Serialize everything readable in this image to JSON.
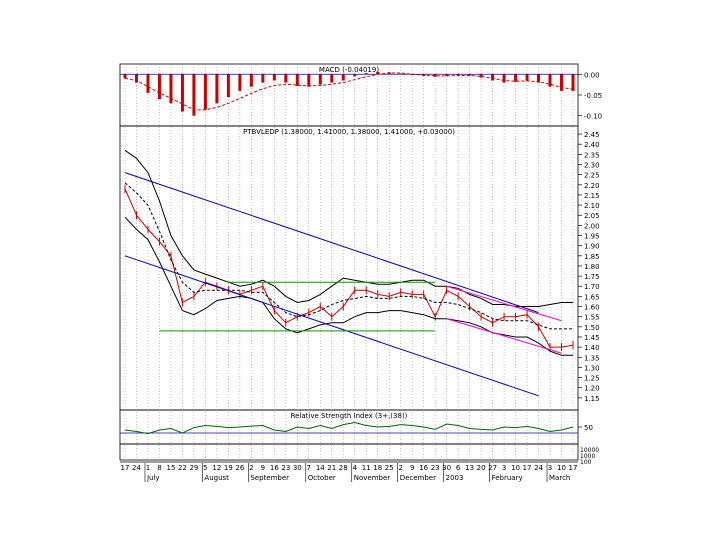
{
  "chart_data": {
    "type": "line",
    "x": [
      "17",
      "24",
      "1",
      "8",
      "15",
      "22",
      "29",
      "5",
      "12",
      "19",
      "26",
      "2",
      "9",
      "16",
      "23",
      "30",
      "7",
      "14",
      "21",
      "28",
      "4",
      "11",
      "18",
      "25",
      "2",
      "9",
      "16",
      "23",
      "30",
      "6",
      "13",
      "20",
      "27",
      "3",
      "10",
      "17",
      "24",
      "3",
      "10",
      "17"
    ],
    "months": [
      "July",
      "August",
      "September",
      "October",
      "November",
      "December",
      "2003",
      "February",
      "March"
    ],
    "panels": [
      {
        "name": "macd",
        "title": "MACD (-0.04019)",
        "ylim": [
          -0.12,
          0.02
        ],
        "ticks": [
          "0.00",
          "-0.05",
          "-0.10"
        ],
        "tick_values": [
          0.0,
          -0.05,
          -0.1
        ],
        "series": [
          {
            "name": "MACD",
            "type": "bar",
            "color": "#cc0000",
            "values": [
              -0.01,
              -0.02,
              -0.045,
              -0.06,
              -0.07,
              -0.09,
              -0.1,
              -0.085,
              -0.07,
              -0.055,
              -0.04,
              -0.03,
              -0.02,
              -0.015,
              -0.02,
              -0.028,
              -0.03,
              -0.025,
              -0.02,
              -0.015,
              -0.005,
              0.003,
              0.006,
              0.005,
              0.002,
              -0.002,
              -0.004,
              -0.006,
              -0.004,
              -0.002,
              -0.003,
              -0.008,
              -0.015,
              -0.02,
              -0.018,
              -0.015,
              -0.02,
              -0.03,
              -0.04,
              -0.04
            ]
          },
          {
            "name": "Signal",
            "type": "line",
            "dash": true,
            "color": "#cc0000",
            "values": [
              -0.01,
              -0.015,
              -0.03,
              -0.045,
              -0.058,
              -0.072,
              -0.086,
              -0.086,
              -0.08,
              -0.07,
              -0.058,
              -0.046,
              -0.035,
              -0.027,
              -0.024,
              -0.026,
              -0.028,
              -0.027,
              -0.024,
              -0.02,
              -0.013,
              -0.006,
              0.0,
              0.003,
              0.003,
              0.0,
              -0.002,
              -0.004,
              -0.004,
              -0.003,
              -0.003,
              -0.005,
              -0.01,
              -0.015,
              -0.017,
              -0.016,
              -0.018,
              -0.024,
              -0.032,
              -0.036
            ]
          }
        ]
      },
      {
        "name": "price",
        "title": "PTBVLEDP (1.38000, 1.41000, 1.38000, 1.41000, +0.03000)",
        "ylim": [
          1.1,
          2.47
        ],
        "ticks": [
          "2.45",
          "2.40",
          "2.35",
          "2.30",
          "2.25",
          "2.20",
          "2.15",
          "2.10",
          "2.05",
          "2.00",
          "1.95",
          "1.90",
          "1.85",
          "1.80",
          "1.75",
          "1.70",
          "1.65",
          "1.60",
          "1.55",
          "1.50",
          "1.45",
          "1.40",
          "1.35",
          "1.30",
          "1.25",
          "1.20",
          "1.15"
        ],
        "tick_values": [
          2.45,
          2.4,
          2.35,
          2.3,
          2.25,
          2.2,
          2.15,
          2.1,
          2.05,
          2.0,
          1.95,
          1.9,
          1.85,
          1.8,
          1.75,
          1.7,
          1.65,
          1.6,
          1.55,
          1.5,
          1.45,
          1.4,
          1.35,
          1.3,
          1.25,
          1.2,
          1.15
        ],
        "series": [
          {
            "name": "Close",
            "type": "line",
            "color": "#cc0000",
            "values": [
              2.18,
              2.05,
              1.98,
              1.92,
              1.85,
              1.62,
              1.65,
              1.72,
              1.7,
              1.68,
              1.66,
              1.68,
              1.7,
              1.58,
              1.52,
              1.55,
              1.57,
              1.6,
              1.55,
              1.6,
              1.68,
              1.68,
              1.66,
              1.65,
              1.67,
              1.66,
              1.66,
              1.55,
              1.68,
              1.65,
              1.6,
              1.55,
              1.52,
              1.55,
              1.55,
              1.56,
              1.5,
              1.4,
              1.4,
              1.41
            ]
          },
          {
            "name": "Bollinger upper",
            "type": "line",
            "color": "#000000",
            "values": [
              2.37,
              2.33,
              2.26,
              2.12,
              1.95,
              1.85,
              1.78,
              1.76,
              1.74,
              1.72,
              1.7,
              1.71,
              1.73,
              1.7,
              1.65,
              1.62,
              1.63,
              1.66,
              1.7,
              1.74,
              1.73,
              1.72,
              1.71,
              1.71,
              1.72,
              1.73,
              1.73,
              1.7,
              1.7,
              1.69,
              1.66,
              1.64,
              1.61,
              1.61,
              1.6,
              1.6,
              1.6,
              1.61,
              1.62,
              1.62
            ]
          },
          {
            "name": "Bollinger lower",
            "type": "line",
            "color": "#000000",
            "values": [
              2.04,
              1.98,
              1.93,
              1.82,
              1.7,
              1.58,
              1.56,
              1.59,
              1.63,
              1.64,
              1.65,
              1.64,
              1.62,
              1.54,
              1.49,
              1.47,
              1.49,
              1.51,
              1.52,
              1.52,
              1.55,
              1.57,
              1.57,
              1.58,
              1.58,
              1.57,
              1.56,
              1.54,
              1.54,
              1.53,
              1.52,
              1.5,
              1.47,
              1.46,
              1.45,
              1.45,
              1.42,
              1.38,
              1.36,
              1.36
            ]
          },
          {
            "name": "Moving average",
            "type": "line",
            "dash": true,
            "color": "#000000",
            "values": [
              2.21,
              2.16,
              2.1,
              1.97,
              1.83,
              1.72,
              1.67,
              1.68,
              1.68,
              1.68,
              1.68,
              1.67,
              1.67,
              1.62,
              1.57,
              1.55,
              1.56,
              1.58,
              1.61,
              1.63,
              1.64,
              1.65,
              1.64,
              1.64,
              1.65,
              1.65,
              1.64,
              1.62,
              1.62,
              1.61,
              1.59,
              1.57,
              1.54,
              1.53,
              1.53,
              1.53,
              1.51,
              1.49,
              1.49,
              1.49
            ]
          }
        ],
        "trendlines": [
          {
            "color": "#0000cc",
            "x0": 0,
            "y0": 2.26,
            "x1": 36,
            "y1": 1.57
          },
          {
            "color": "#0000cc",
            "x0": 0,
            "y0": 1.85,
            "x1": 36,
            "y1": 1.16
          },
          {
            "color": "#009900",
            "x0": 9,
            "y0": 1.72,
            "x1": 27,
            "y1": 1.72
          },
          {
            "color": "#009900",
            "x0": 3,
            "y0": 1.48,
            "x1": 27,
            "y1": 1.48
          },
          {
            "color": "#ff00cc",
            "x0": 28,
            "y0": 1.7,
            "x1": 38,
            "y1": 1.53
          },
          {
            "color": "#ff00cc",
            "x0": 28,
            "y0": 1.54,
            "x1": 38,
            "y1": 1.37
          }
        ]
      },
      {
        "name": "rsi",
        "title": "Relative Strength Index (3+,(38))",
        "ylim": [
          0,
          100
        ],
        "ticks": [
          "50"
        ],
        "tick_values": [
          50
        ],
        "series": [
          {
            "name": "RSI",
            "type": "line",
            "color": "#006600",
            "values": [
              40,
              35,
              28,
              40,
              45,
              30,
              48,
              55,
              52,
              48,
              50,
              53,
              55,
              40,
              35,
              50,
              45,
              55,
              45,
              58,
              65,
              55,
              50,
              52,
              58,
              55,
              50,
              42,
              60,
              55,
              45,
              42,
              40,
              50,
              48,
              52,
              45,
              35,
              40,
              50
            ]
          }
        ]
      },
      {
        "name": "volume",
        "ticks": [
          "10000",
          "1000",
          "100"
        ],
        "series": [
          {
            "name": "Volume",
            "type": "bar",
            "color": "#0000cc",
            "values": [
              0,
              0,
              0,
              0,
              0,
              0,
              0,
              0,
              0,
              0,
              0,
              0,
              0,
              0,
              0,
              0,
              0,
              0,
              0,
              0,
              0,
              0,
              0,
              0,
              0,
              0,
              0,
              0,
              0,
              0,
              0,
              0,
              0,
              0,
              0,
              0,
              0,
              0,
              0,
              0
            ]
          }
        ]
      }
    ]
  }
}
